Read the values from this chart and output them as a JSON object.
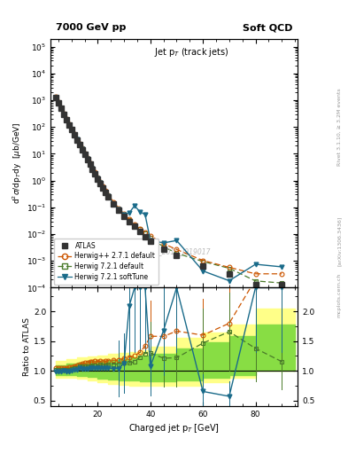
{
  "title_left": "7000 GeV pp",
  "title_right": "Soft QCD",
  "plot_title": "Jet p$_T$ (track jets)",
  "ylabel_main": "d$^2$$\\sigma$/dp$_{T}$dy  [$\\mu$b/GeV]",
  "ylabel_ratio": "Ratio to ATLAS",
  "xlabel": "Charged jet p$_T$ [GeV]",
  "right_label": "Rivet 3.1.10, ≥ 3.2M events",
  "arxiv_label": "[arXiv:1306.3436]",
  "watermark": "ATLAS_2011_I919017",
  "atlas_x": [
    4,
    5,
    6,
    7,
    8,
    9,
    10,
    11,
    12,
    13,
    14,
    15,
    16,
    17,
    18,
    19,
    20,
    21,
    22,
    23,
    24,
    26,
    28,
    30,
    32,
    34,
    36,
    38,
    40,
    45,
    50,
    60,
    70,
    80,
    90
  ],
  "atlas_y": [
    1300,
    800,
    490,
    305,
    192,
    123,
    79,
    51,
    33,
    21.5,
    14.2,
    9.3,
    6.1,
    4.0,
    2.65,
    1.76,
    1.16,
    0.78,
    0.525,
    0.36,
    0.248,
    0.134,
    0.079,
    0.047,
    0.03,
    0.0193,
    0.0125,
    0.0082,
    0.0055,
    0.0028,
    0.0016,
    0.00065,
    0.00032,
    0.00013,
    0.00013
  ],
  "hwpp_x": [
    4,
    5,
    6,
    7,
    8,
    9,
    10,
    11,
    12,
    13,
    14,
    15,
    16,
    17,
    18,
    19,
    20,
    21,
    22,
    23,
    24,
    26,
    28,
    30,
    32,
    34,
    36,
    38,
    40,
    45,
    50,
    60,
    70,
    80,
    90
  ],
  "hwpp_y": [
    1352,
    832,
    510,
    320,
    202,
    130,
    84,
    55,
    36,
    23.9,
    15.9,
    10.5,
    6.96,
    4.6,
    3.04,
    2.06,
    1.335,
    0.905,
    0.607,
    0.418,
    0.29,
    0.158,
    0.093,
    0.057,
    0.0369,
    0.0241,
    0.0164,
    0.0116,
    0.0087,
    0.00442,
    0.00267,
    0.00104,
    0.000576,
    0.00033,
    0.00033
  ],
  "hw721_x": [
    4,
    5,
    6,
    7,
    8,
    9,
    10,
    11,
    12,
    13,
    14,
    15,
    16,
    17,
    18,
    19,
    20,
    21,
    22,
    23,
    24,
    26,
    28,
    30,
    32,
    34,
    36,
    38,
    40,
    45,
    50,
    60,
    70,
    80,
    90
  ],
  "hw721_y": [
    1326,
    808,
    497,
    311,
    196,
    126,
    81.4,
    53.0,
    34.3,
    23.0,
    15.2,
    9.96,
    6.59,
    4.32,
    2.89,
    1.92,
    1.253,
    0.858,
    0.573,
    0.393,
    0.273,
    0.149,
    0.0878,
    0.0536,
    0.0339,
    0.0222,
    0.0154,
    0.0106,
    0.00715,
    0.00339,
    0.00195,
    0.000953,
    0.000531,
    0.000179,
    0.00015
  ],
  "hwsoft_x": [
    4,
    5,
    6,
    7,
    8,
    9,
    10,
    11,
    12,
    13,
    14,
    15,
    16,
    17,
    18,
    19,
    20,
    21,
    22,
    23,
    24,
    26,
    28,
    30,
    32,
    34,
    36,
    38,
    40,
    45,
    50,
    60,
    70,
    80,
    90
  ],
  "hwsoft_y": [
    1281,
    791,
    487,
    304,
    190,
    122,
    79.0,
    52.0,
    33.8,
    22.4,
    14.6,
    9.6,
    6.3,
    4.2,
    2.77,
    1.85,
    1.21,
    0.82,
    0.548,
    0.375,
    0.258,
    0.139,
    0.082,
    0.053,
    0.063,
    0.115,
    0.069,
    0.054,
    0.0059,
    0.0047,
    0.0058,
    0.000423,
    0.000182,
    0.00075,
    0.0006
  ],
  "hwpp_ratio": [
    1.04,
    1.04,
    1.04,
    1.05,
    1.05,
    1.056,
    1.063,
    1.078,
    1.09,
    1.11,
    1.12,
    1.129,
    1.142,
    1.15,
    1.147,
    1.17,
    1.15,
    1.16,
    1.156,
    1.161,
    1.169,
    1.179,
    1.177,
    1.213,
    1.23,
    1.249,
    1.312,
    1.415,
    1.582,
    1.579,
    1.669,
    1.6,
    1.8,
    2.54,
    2.54
  ],
  "hw721_ratio": [
    1.02,
    1.01,
    1.014,
    1.02,
    1.021,
    1.024,
    1.03,
    1.039,
    1.039,
    1.07,
    1.07,
    1.071,
    1.081,
    1.08,
    1.091,
    1.091,
    1.08,
    1.1,
    1.091,
    1.092,
    1.101,
    1.112,
    1.111,
    1.14,
    1.13,
    1.15,
    1.232,
    1.293,
    1.3,
    1.211,
    1.219,
    1.466,
    1.659,
    1.377,
    1.154
  ],
  "hwsoft_ratio": [
    0.985,
    0.989,
    0.994,
    0.997,
    0.99,
    0.992,
    1.0,
    1.02,
    1.024,
    1.042,
    1.028,
    1.032,
    1.033,
    1.05,
    1.045,
    1.051,
    1.043,
    1.051,
    1.043,
    1.042,
    1.04,
    1.037,
    1.038,
    1.128,
    2.1,
    5.96,
    5.52,
    6.59,
    1.073,
    1.679,
    3.625,
    0.651,
    0.569,
    5.769,
    4.615
  ],
  "atlas_color": "#333333",
  "hwpp_color": "#cc5500",
  "hw721_color": "#4a7a2a",
  "hwsoft_color": "#1a6b8a",
  "band_yellow": "#ffff88",
  "band_green": "#88dd44",
  "ylim_main": [
    0.0001,
    200000.0
  ],
  "ylim_ratio": [
    0.4,
    2.4
  ],
  "xlim": [
    2,
    96
  ],
  "ratio_yticks": [
    0.5,
    1.0,
    1.5,
    2.0
  ],
  "band_x_edges": [
    4,
    8,
    12,
    16,
    20,
    24,
    28,
    32,
    36,
    40,
    50,
    60,
    70,
    80,
    95
  ],
  "yellow_lo": [
    0.88,
    0.88,
    0.86,
    0.83,
    0.8,
    0.78,
    0.76,
    0.75,
    0.74,
    0.74,
    0.74,
    0.8,
    0.88,
    1.0,
    1.15
  ],
  "yellow_hi": [
    1.16,
    1.2,
    1.22,
    1.24,
    1.26,
    1.28,
    1.3,
    1.32,
    1.35,
    1.4,
    1.55,
    1.65,
    1.78,
    2.05,
    2.2
  ],
  "green_lo": [
    0.92,
    0.92,
    0.91,
    0.89,
    0.87,
    0.85,
    0.84,
    0.83,
    0.82,
    0.82,
    0.83,
    0.88,
    0.93,
    1.0,
    1.12
  ],
  "green_hi": [
    1.09,
    1.12,
    1.14,
    1.16,
    1.17,
    1.18,
    1.2,
    1.22,
    1.25,
    1.28,
    1.38,
    1.48,
    1.58,
    1.78,
    1.95
  ]
}
